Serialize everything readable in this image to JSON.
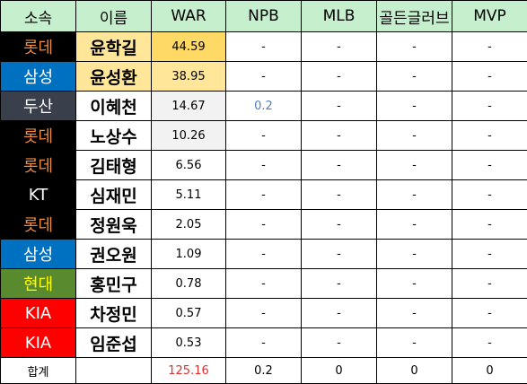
{
  "headers": [
    "소속",
    "이름",
    "WAR",
    "NPB",
    "MLB",
    "골든글러브",
    "MVP"
  ],
  "colors": {
    "header_bg": "#c6efce",
    "team_lotte_bg": "#000000",
    "team_lotte_fg": "#f08a3c",
    "team_samsung_bg": "#0070c0",
    "team_samsung_fg": "#ffffff",
    "team_doosan_bg": "#3a3f4c",
    "team_doosan_fg": "#ffffff",
    "team_kt_bg": "#000000",
    "team_kt_fg": "#ffffff",
    "team_hyundai_bg": "#5a8a2e",
    "team_hyundai_fg": "#ffff00",
    "team_kia_bg": "#ff0000",
    "team_kia_fg": "#ffffff",
    "war_highlight": "#f2f2f2",
    "npb_value": "#4f81bd",
    "total_war": "#e03030"
  },
  "rows": [
    {
      "team": "롯데",
      "team_key": "lotte",
      "name": "윤학길",
      "name_bg": "#ffe699",
      "war": "44.59",
      "war_bg": "#ffd966",
      "npb": "-",
      "mlb": "-",
      "gg": "-",
      "mvp": "-"
    },
    {
      "team": "삼성",
      "team_key": "samsung",
      "name": "윤성환",
      "name_bg": "#ffe699",
      "war": "38.95",
      "war_bg": "#ffe699",
      "npb": "-",
      "mlb": "-",
      "gg": "-",
      "mvp": "-"
    },
    {
      "team": "두산",
      "team_key": "doosan",
      "name": "이혜천",
      "name_bg": "#ffffff",
      "war": "14.67",
      "war_bg": "#f2f2f2",
      "npb": "0.2",
      "mlb": "-",
      "gg": "-",
      "mvp": "-"
    },
    {
      "team": "롯데",
      "team_key": "lotte",
      "name": "노상수",
      "name_bg": "#ffffff",
      "war": "10.26",
      "war_bg": "#f2f2f2",
      "npb": "-",
      "mlb": "-",
      "gg": "-",
      "mvp": "-"
    },
    {
      "team": "롯데",
      "team_key": "lotte",
      "name": "김태형",
      "name_bg": "#ffffff",
      "war": "6.56",
      "war_bg": "#ffffff",
      "npb": "-",
      "mlb": "-",
      "gg": "-",
      "mvp": "-"
    },
    {
      "team": "KT",
      "team_key": "kt",
      "name": "심재민",
      "name_bg": "#ffffff",
      "war": "5.11",
      "war_bg": "#ffffff",
      "npb": "-",
      "mlb": "-",
      "gg": "-",
      "mvp": "-"
    },
    {
      "team": "롯데",
      "team_key": "lotte",
      "name": "정원욱",
      "name_bg": "#ffffff",
      "war": "2.05",
      "war_bg": "#ffffff",
      "npb": "-",
      "mlb": "-",
      "gg": "-",
      "mvp": "-"
    },
    {
      "team": "삼성",
      "team_key": "samsung",
      "name": "권오원",
      "name_bg": "#ffffff",
      "war": "1.09",
      "war_bg": "#ffffff",
      "npb": "-",
      "mlb": "-",
      "gg": "-",
      "mvp": "-"
    },
    {
      "team": "현대",
      "team_key": "hyundai",
      "name": "홍민구",
      "name_bg": "#ffffff",
      "war": "0.78",
      "war_bg": "#ffffff",
      "npb": "-",
      "mlb": "-",
      "gg": "-",
      "mvp": "-"
    },
    {
      "team": "KIA",
      "team_key": "kia",
      "name": "차정민",
      "name_bg": "#ffffff",
      "war": "0.57",
      "war_bg": "#ffffff",
      "npb": "-",
      "mlb": "-",
      "gg": "-",
      "mvp": "-"
    },
    {
      "team": "KIA",
      "team_key": "kia",
      "name": "임준섭",
      "name_bg": "#ffffff",
      "war": "0.53",
      "war_bg": "#ffffff",
      "npb": "-",
      "mlb": "-",
      "gg": "-",
      "mvp": "-"
    }
  ],
  "total": {
    "label": "합계",
    "war": "125.16",
    "npb": "0.2",
    "mlb": "0",
    "gg": "0",
    "mvp": "0"
  }
}
